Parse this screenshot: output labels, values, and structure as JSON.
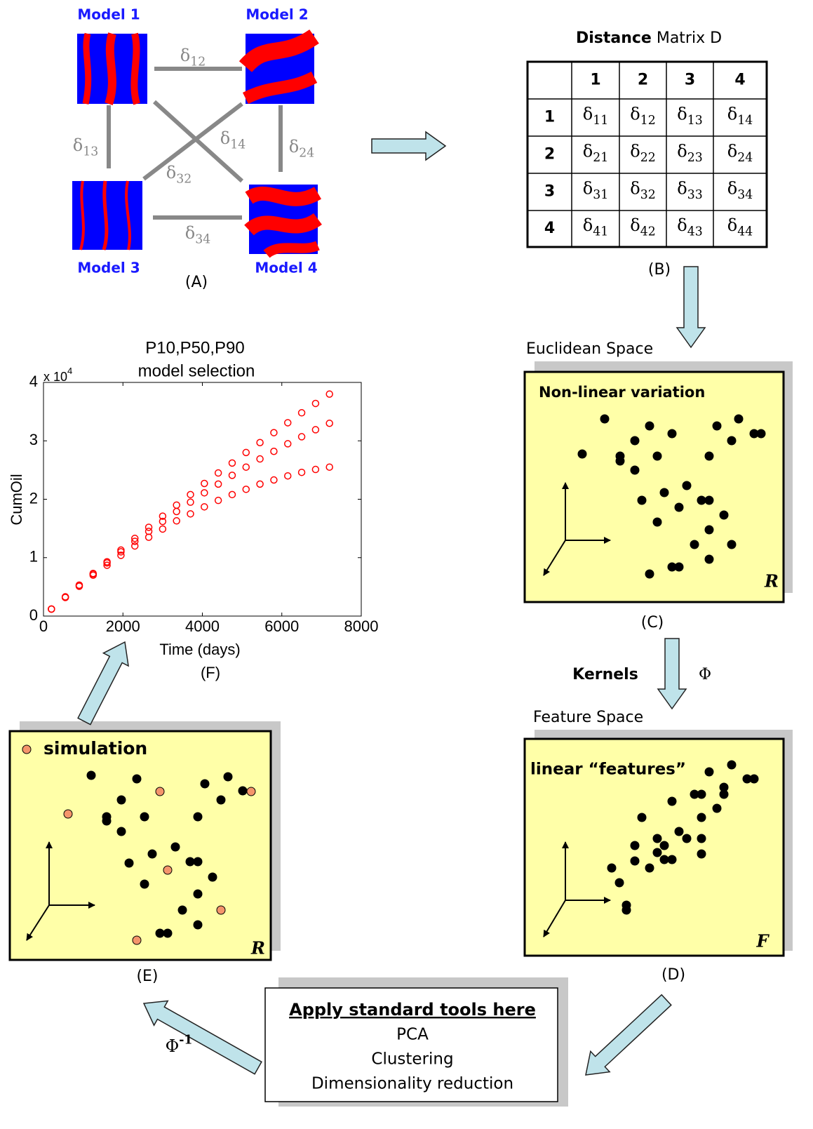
{
  "panel_a": {
    "models": [
      "Model 1",
      "Model 2",
      "Model 3",
      "Model 4"
    ],
    "distances": [
      {
        "symbol": "δ",
        "subscript": "12"
      },
      {
        "symbol": "δ",
        "subscript": "13"
      },
      {
        "symbol": "δ",
        "subscript": "14"
      },
      {
        "symbol": "δ",
        "subscript": "24"
      },
      {
        "symbol": "δ",
        "subscript": "32"
      },
      {
        "symbol": "δ",
        "subscript": "34"
      }
    ],
    "label": "(A)"
  },
  "distance_matrix": {
    "title": [
      "Distance",
      "Matrix D"
    ],
    "column_headers": [
      "1",
      "2",
      "3",
      "4"
    ],
    "row_headers": [
      "1",
      "2",
      "3",
      "4"
    ],
    "symbol": "δ",
    "subscripts": [
      [
        "11",
        "12",
        "13",
        "14"
      ],
      [
        "21",
        "22",
        "23",
        "24"
      ],
      [
        "31",
        "32",
        "33",
        "34"
      ],
      [
        "41",
        "42",
        "43",
        "44"
      ]
    ],
    "label": "(B)"
  },
  "euclidean_space": {
    "heading": "Euclidean Space",
    "title": "Non-linear variation",
    "space_symbol": "R",
    "label": "(C)"
  },
  "kernel_step": {
    "name": "Kernels",
    "symbol": "Φ"
  },
  "feature_space": {
    "heading": "Feature Space",
    "title": "linear “features”",
    "space_symbol": "F",
    "label": "(D)"
  },
  "standard_tools": {
    "title": "Apply standard tools here",
    "items": [
      "PCA",
      "Clustering",
      "Dimensionality reduction"
    ]
  },
  "inverse_step": {
    "symbol": "Φ",
    "superscript": "-1"
  },
  "simulation_space": {
    "legend": "simulation",
    "space_symbol": "R",
    "label": "(E)"
  },
  "chart_data": {
    "type": "scatter",
    "title": [
      "P10,P50,P90",
      "model selection"
    ],
    "xlabel": "Time (days)",
    "ylabel": "CumOil",
    "y_multiplier": {
      "base": "x 10",
      "exponent": "4"
    },
    "caption": "(F)",
    "x": [
      200,
      550,
      900,
      1250,
      1600,
      1950,
      2300,
      2650,
      3000,
      3350,
      3700,
      4050,
      4400,
      4750,
      5100,
      5450,
      5800,
      6150,
      6500,
      6850,
      7200
    ],
    "series": [
      {
        "color": "#ff0000",
        "values": [
          0.12,
          0.33,
          0.53,
          0.73,
          0.93,
          1.13,
          1.33,
          1.52,
          1.71,
          1.9,
          2.08,
          2.27,
          2.45,
          2.62,
          2.8,
          2.97,
          3.14,
          3.31,
          3.48,
          3.64,
          3.8
        ]
      },
      {
        "color": "#ff0000",
        "values": [
          0.12,
          0.32,
          0.52,
          0.72,
          0.91,
          1.1,
          1.28,
          1.45,
          1.62,
          1.79,
          1.95,
          2.11,
          2.26,
          2.41,
          2.55,
          2.69,
          2.82,
          2.95,
          3.07,
          3.19,
          3.3
        ]
      },
      {
        "color": "#ff0000",
        "values": [
          0.12,
          0.32,
          0.51,
          0.7,
          0.87,
          1.04,
          1.2,
          1.35,
          1.49,
          1.63,
          1.75,
          1.87,
          1.98,
          2.08,
          2.17,
          2.26,
          2.33,
          2.4,
          2.46,
          2.51,
          2.55
        ]
      }
    ],
    "xlim": [
      0,
      8000
    ],
    "xticks": [
      0,
      2000,
      4000,
      6000,
      8000
    ],
    "ylim": [
      0,
      4
    ],
    "yticks": [
      0,
      1,
      2,
      3,
      4
    ]
  }
}
